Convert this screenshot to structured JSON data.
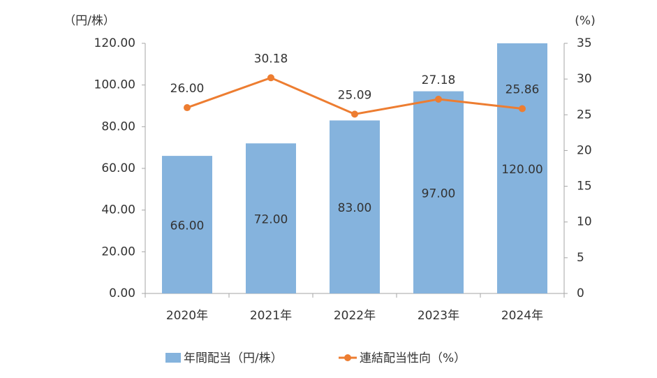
{
  "chart_data": {
    "type": "bar",
    "y_label": "（円/株）",
    "y2_label": "(%)",
    "categories": [
      "2020年",
      "2021年",
      "2022年",
      "2023年",
      "2024年"
    ],
    "series": [
      {
        "name": "年間配当（円/株）",
        "type": "bar",
        "color": "#85b3dd",
        "values": [
          66,
          72,
          83,
          97,
          120
        ],
        "value_labels": [
          "66.00",
          "72.00",
          "83.00",
          "97.00",
          "120.00"
        ]
      },
      {
        "name": "連結配当性向（%）",
        "type": "line",
        "axis": "y2",
        "color": "#ed7d31",
        "values": [
          26,
          30.18,
          25.09,
          27.18,
          25.86
        ],
        "value_labels": [
          "26.00",
          "30.18",
          "25.09",
          "27.18",
          "25.86"
        ]
      }
    ],
    "ylim": [
      0,
      120
    ],
    "yticks": [
      {
        "value": 0,
        "label": "0.00"
      },
      {
        "value": 20,
        "label": "20.00"
      },
      {
        "value": 40,
        "label": "40.00"
      },
      {
        "value": 60,
        "label": "60.00"
      },
      {
        "value": 80,
        "label": "80.00"
      },
      {
        "value": 100,
        "label": "100.00"
      },
      {
        "value": 120,
        "label": "120.00"
      }
    ],
    "y2lim": [
      0,
      35
    ],
    "y2ticks": [
      0,
      5,
      10,
      15,
      20,
      25,
      30,
      35
    ],
    "grid": false,
    "legend": "bottom"
  }
}
